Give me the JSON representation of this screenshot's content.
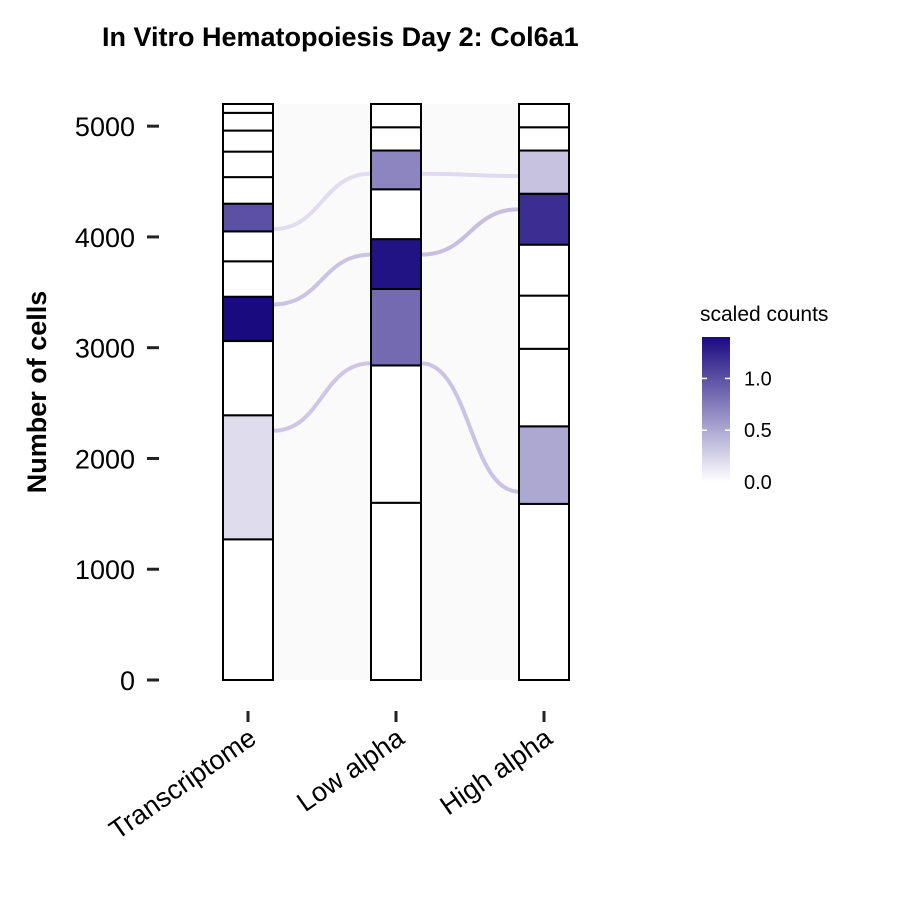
{
  "chart_data": {
    "type": "alluvial",
    "title": "In Vitro Hematopoiesis Day 2: Col6a1",
    "ylabel": "Number of cells",
    "xlabel": "",
    "ylim": [
      0,
      5200
    ],
    "yticks": [
      0,
      1000,
      2000,
      3000,
      4000,
      5000
    ],
    "ytick_labels": [
      "0",
      "1000",
      "2000",
      "3000",
      "4000",
      "5000"
    ],
    "categories": [
      "Transcriptome",
      "Low alpha",
      "High alpha"
    ],
    "color_low": "#ffffff",
    "color_high": "#1a0a80",
    "fill_max": 1.4,
    "legend": {
      "title": "scaled counts",
      "placement": "right",
      "min": 0.0,
      "max": 1.4,
      "breaks": [
        0.0,
        0.5,
        1.0
      ],
      "break_labels": [
        "0.0",
        "0.5",
        "1.0"
      ]
    },
    "stacks": [
      {
        "name": "Transcriptome",
        "segments": [
          {
            "y0": 0,
            "y1": 1270,
            "fill": 0.0
          },
          {
            "y0": 1270,
            "y1": 2390,
            "fill": 0.2
          },
          {
            "y0": 2390,
            "y1": 3060,
            "fill": 0.0
          },
          {
            "y0": 3060,
            "y1": 3460,
            "fill": 1.4
          },
          {
            "y0": 3460,
            "y1": 3780,
            "fill": 0.0
          },
          {
            "y0": 3780,
            "y1": 4050,
            "fill": 0.0
          },
          {
            "y0": 4050,
            "y1": 4300,
            "fill": 1.0
          },
          {
            "y0": 4300,
            "y1": 4540,
            "fill": 0.0
          },
          {
            "y0": 4540,
            "y1": 4770,
            "fill": 0.0
          },
          {
            "y0": 4770,
            "y1": 4960,
            "fill": 0.0
          },
          {
            "y0": 4960,
            "y1": 5120,
            "fill": 0.0
          },
          {
            "y0": 5120,
            "y1": 5200,
            "fill": 0.0
          }
        ]
      },
      {
        "name": "Low alpha",
        "segments": [
          {
            "y0": 0,
            "y1": 1600,
            "fill": 0.0
          },
          {
            "y0": 1600,
            "y1": 2840,
            "fill": 0.0
          },
          {
            "y0": 2840,
            "y1": 3530,
            "fill": 0.85
          },
          {
            "y0": 3530,
            "y1": 3980,
            "fill": 1.35
          },
          {
            "y0": 3980,
            "y1": 4430,
            "fill": 0.0
          },
          {
            "y0": 4430,
            "y1": 4780,
            "fill": 0.7
          },
          {
            "y0": 4780,
            "y1": 4990,
            "fill": 0.0
          },
          {
            "y0": 4990,
            "y1": 5200,
            "fill": 0.0
          }
        ]
      },
      {
        "name": "High alpha",
        "segments": [
          {
            "y0": 0,
            "y1": 1590,
            "fill": 0.0
          },
          {
            "y0": 1590,
            "y1": 2290,
            "fill": 0.5
          },
          {
            "y0": 2290,
            "y1": 2990,
            "fill": 0.0
          },
          {
            "y0": 2990,
            "y1": 3470,
            "fill": 0.0
          },
          {
            "y0": 3470,
            "y1": 3930,
            "fill": 0.0
          },
          {
            "y0": 3930,
            "y1": 4390,
            "fill": 1.2
          },
          {
            "y0": 4390,
            "y1": 4780,
            "fill": 0.35
          },
          {
            "y0": 4780,
            "y1": 4990,
            "fill": 0.0
          },
          {
            "y0": 4990,
            "y1": 5200,
            "fill": 0.0
          }
        ]
      }
    ],
    "flows": [
      {
        "from": "Transcriptome",
        "to": "Low alpha",
        "y_from": 4070,
        "y_to": 4570,
        "color": "#e2dcf0"
      },
      {
        "from": "Transcriptome",
        "to": "Low alpha",
        "y_from": 3390,
        "y_to": 3840,
        "color": "#cbc3e2"
      },
      {
        "from": "Transcriptome",
        "to": "Low alpha",
        "y_from": 2250,
        "y_to": 2860,
        "color": "#cfc6e6"
      },
      {
        "from": "Low alpha",
        "to": "High alpha",
        "y_from": 4570,
        "y_to": 4550,
        "color": "#e0daf0"
      },
      {
        "from": "Low alpha",
        "to": "High alpha",
        "y_from": 3840,
        "y_to": 4250,
        "color": "#c7bfe0"
      },
      {
        "from": "Low alpha",
        "to": "High alpha",
        "y_from": 2860,
        "y_to": 1700,
        "color": "#cbc3e4"
      }
    ]
  }
}
